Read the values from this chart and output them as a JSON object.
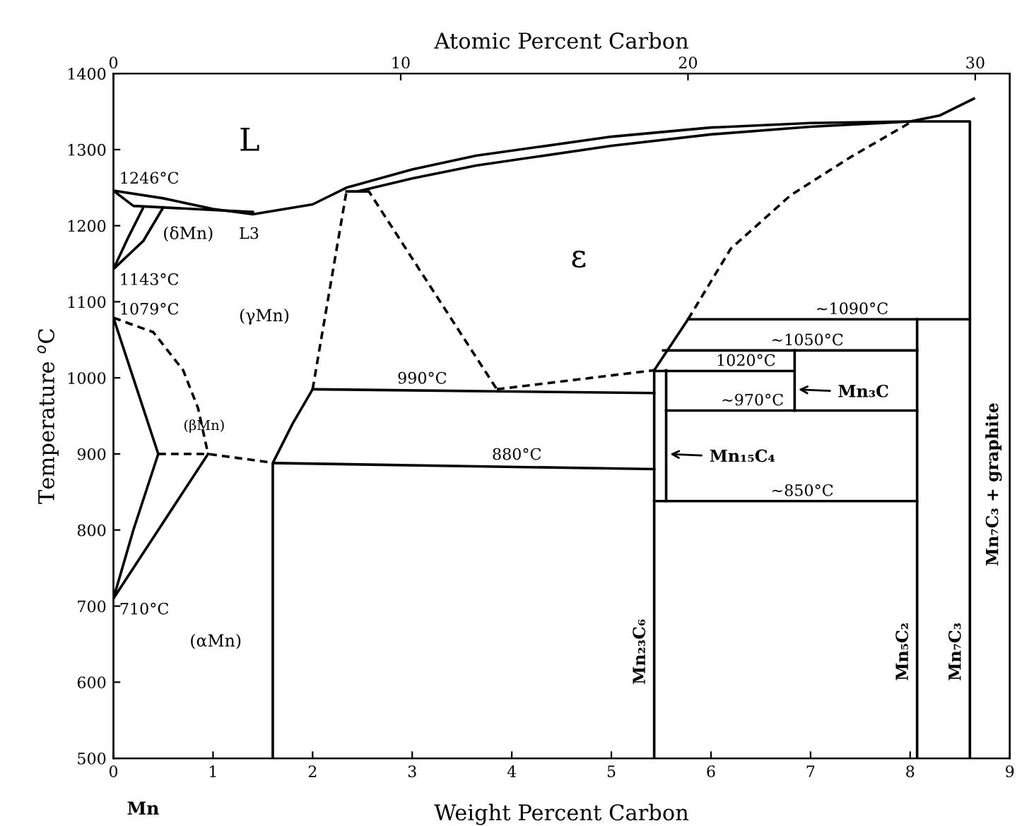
{
  "chart_data": {
    "type": "line",
    "xlabel": "Weight Percent Carbon",
    "ylabel": "Temperature $^{o}$C",
    "x2label": "Atomic Percent Carbon",
    "xlim": [
      0,
      9
    ],
    "xticks": [
      0,
      1,
      2,
      3,
      4,
      5,
      6,
      7,
      8,
      9
    ],
    "ylim": [
      500,
      1400
    ],
    "yticks": [
      500,
      600,
      700,
      800,
      900,
      1000,
      1100,
      1200,
      1300,
      1400
    ],
    "x2lim": [
      0,
      31.2
    ],
    "x2ticks": [
      0,
      10,
      20,
      30
    ],
    "grid": false,
    "legend": false,
    "marker": "none",
    "series": [
      {
        "color": "#000000",
        "line_style": "solid",
        "x": [
          0,
          0.5,
          1.0,
          1.4,
          2.0,
          2.34,
          3.0,
          3.64,
          5.0,
          6.0,
          7.0,
          8.0,
          8.3,
          8.64
        ],
        "values": [
          1246,
          1236,
          1222,
          1215,
          1228,
          1250,
          1274,
          1292,
          1317,
          1329,
          1335,
          1337,
          1345,
          1367
        ]
      },
      {
        "color": "#000000",
        "line_style": "solid",
        "x": [
          2.45,
          3.0,
          3.64,
          5.0,
          6.0,
          7.0,
          8.0,
          8.6,
          8.6
        ],
        "values": [
          1245,
          1262,
          1279,
          1305,
          1320,
          1330,
          1337,
          1337,
          500
        ]
      },
      {
        "color": "#000000",
        "line_style": "solid",
        "x": [
          0,
          0.2,
          1.4
        ],
        "values": [
          1246,
          1226,
          1218
        ]
      },
      {
        "color": "#000000",
        "line_style": "solid",
        "x": [
          0,
          0.15,
          0.3
        ],
        "values": [
          1143,
          1185,
          1224
        ]
      },
      {
        "color": "#000000",
        "line_style": "solid",
        "x": [
          0,
          0.3,
          0.5
        ],
        "values": [
          1143,
          1180,
          1224
        ]
      },
      {
        "color": "#000000",
        "line_style": "solid",
        "x": [
          0,
          0.45
        ],
        "values": [
          1079,
          900
        ]
      },
      {
        "color": "#000000",
        "line_style": "dashed",
        "x": [
          0,
          0.4,
          0.7,
          0.85,
          0.95
        ],
        "values": [
          1079,
          1060,
          1010,
          960,
          900
        ]
      },
      {
        "color": "#000000",
        "line_style": "dashed",
        "x": [
          0.45,
          0.95,
          1.62
        ],
        "values": [
          900,
          900,
          888
        ]
      },
      {
        "color": "#000000",
        "line_style": "solid",
        "x": [
          0,
          0.2,
          0.45
        ],
        "values": [
          710,
          800,
          900
        ]
      },
      {
        "color": "#000000",
        "line_style": "solid",
        "x": [
          0,
          0.95
        ],
        "values": [
          710,
          900
        ]
      },
      {
        "color": "#000000",
        "line_style": "solid",
        "x": [
          1.6,
          1.6,
          1.8,
          2.0
        ],
        "values": [
          500,
          888,
          940,
          985
        ]
      },
      {
        "color": "#000000",
        "line_style": "dashed",
        "x": [
          2.0,
          2.34
        ],
        "values": [
          985,
          1245
        ]
      },
      {
        "color": "#000000",
        "line_style": "solid",
        "x": [
          2.34,
          2.55
        ],
        "values": [
          1245,
          1245
        ]
      },
      {
        "color": "#000000",
        "line_style": "dashed",
        "x": [
          2.55,
          3.85
        ],
        "values": [
          1248,
          985
        ]
      },
      {
        "color": "#000000",
        "line_style": "solid",
        "x": [
          2.0,
          5.43
        ],
        "values": [
          985,
          980
        ]
      },
      {
        "color": "#000000",
        "line_style": "dashed",
        "x": [
          3.85,
          5.43
        ],
        "values": [
          985,
          1010
        ]
      },
      {
        "color": "#000000",
        "line_style": "solid",
        "x": [
          1.62,
          5.43
        ],
        "values": [
          888,
          880
        ]
      },
      {
        "color": "#000000",
        "line_style": "solid",
        "x": [
          5.43,
          5.43
        ],
        "values": [
          1010,
          500
        ]
      },
      {
        "color": "#000000",
        "line_style": "solid",
        "x": [
          5.55,
          5.55
        ],
        "values": [
          1010,
          838
        ]
      },
      {
        "color": "#000000",
        "line_style": "solid",
        "x": [
          5.43,
          5.77
        ],
        "values": [
          1010,
          1077
        ]
      },
      {
        "color": "#000000",
        "line_style": "dashed",
        "x": [
          5.77,
          6.2,
          6.8,
          7.4,
          8.02
        ],
        "values": [
          1077,
          1170,
          1240,
          1290,
          1337
        ]
      },
      {
        "color": "#000000",
        "line_style": "solid",
        "x": [
          5.77,
          8.6
        ],
        "values": [
          1077,
          1077
        ]
      },
      {
        "color": "#000000",
        "line_style": "solid",
        "x": [
          5.52,
          8.07
        ],
        "values": [
          1036,
          1036
        ]
      },
      {
        "color": "#000000",
        "line_style": "solid",
        "x": [
          5.43,
          6.84
        ],
        "values": [
          1009,
          1009
        ]
      },
      {
        "color": "#000000",
        "line_style": "solid",
        "x": [
          6.84,
          6.84
        ],
        "values": [
          1036,
          957
        ]
      },
      {
        "color": "#000000",
        "line_style": "solid",
        "x": [
          5.55,
          8.07
        ],
        "values": [
          957,
          957
        ]
      },
      {
        "color": "#000000",
        "line_style": "solid",
        "x": [
          5.43,
          8.07
        ],
        "values": [
          838,
          838
        ]
      },
      {
        "color": "#000000",
        "line_style": "solid",
        "x": [
          8.07,
          8.07
        ],
        "values": [
          1077,
          500
        ]
      }
    ],
    "annotations": [
      "L",
      "ε",
      "(δMn)",
      "(γMn)",
      "(αMn)",
      "(βMn)",
      "L3",
      {
        "text": "1246°C",
        "x": 0,
        "y": 1246
      },
      {
        "text": "1143°C",
        "x": 0,
        "y": 1143
      },
      {
        "text": "1079°C",
        "x": 0,
        "y": 1079
      },
      {
        "text": "710°C",
        "x": 0,
        "y": 710
      },
      {
        "text": "990°C",
        "x": 2.85,
        "y": 983
      },
      {
        "text": "880°C",
        "x": 3.8,
        "y": 883
      },
      {
        "text": "~1090°C",
        "x": 7.05,
        "y": 1077
      },
      {
        "text": "~1050°C",
        "x": 6.6,
        "y": 1036
      },
      {
        "text": "1020°C",
        "x": 6.05,
        "y": 1009
      },
      {
        "text": "~970°C",
        "x": 6.1,
        "y": 957
      },
      {
        "text": "~850°C",
        "x": 6.6,
        "y": 838
      },
      {
        "text": "Mn₃C",
        "x": 6.84,
        "y": 985
      },
      {
        "text": "Mn₁₅C₄",
        "x": 5.55,
        "y": 900
      },
      {
        "text": "Mn₂₃C₆",
        "x": 5.43,
        "y": 640
      },
      {
        "text": "Mn₅C₂",
        "x": 8.07,
        "y": 640
      },
      {
        "text": "Mn₇C₃",
        "x": 8.6,
        "y": 640
      },
      "Mn₇C₃ + graphite",
      "Mn"
    ]
  }
}
